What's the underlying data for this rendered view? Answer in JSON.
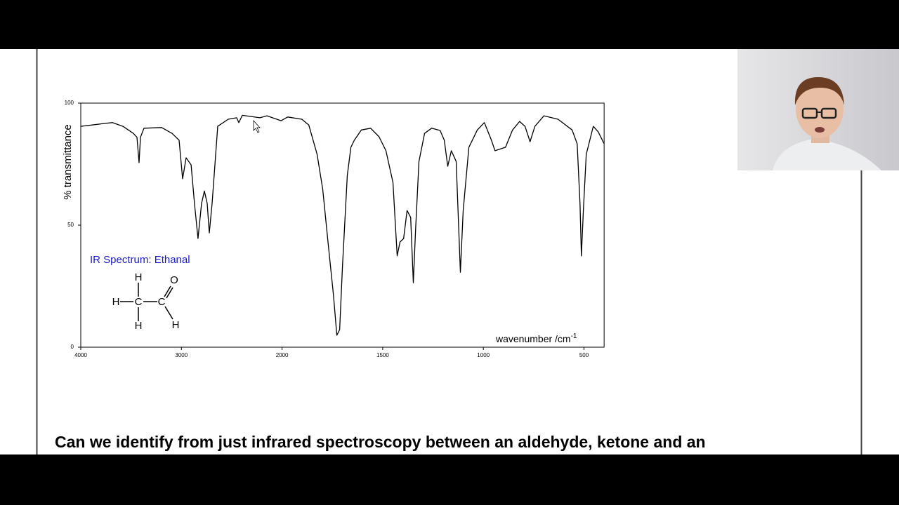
{
  "chart_data": {
    "type": "line",
    "ylabel": "% transmittance",
    "xlabel": "wavenumber /cm",
    "xlabel_sup": "-1",
    "annotation": "IR Spectrum: Ethanal",
    "molecule": [
      "H",
      "H",
      "H",
      "C",
      "C",
      "O",
      "H"
    ],
    "color": "#000000",
    "xlim": [
      4000,
      400
    ],
    "ylim": [
      0,
      100
    ],
    "xticks": [
      4000,
      3000,
      2000,
      1500,
      1000,
      500
    ],
    "yticks": [
      0,
      50,
      100
    ],
    "x": [
      4000,
      3756,
      3686,
      3581,
      3477,
      3442,
      3421,
      3407,
      3372,
      3197,
      3093,
      3023,
      2988,
      2953,
      2904,
      2870,
      2835,
      2800,
      2772,
      2744,
      2723,
      2695,
      2639,
      2535,
      2451,
      2430,
      2395,
      2220,
      2150,
      2010,
      1972,
      1902,
      1867,
      1826,
      1798,
      1770,
      1745,
      1728,
      1714,
      1700,
      1676,
      1658,
      1641,
      1606,
      1560,
      1518,
      1484,
      1449,
      1428,
      1414,
      1396,
      1379,
      1361,
      1348,
      1337,
      1320,
      1292,
      1257,
      1215,
      1194,
      1177,
      1159,
      1135,
      1114,
      1100,
      1072,
      1030,
      995,
      960,
      942,
      890,
      855,
      820,
      793,
      768,
      744,
      699,
      629,
      559,
      534,
      520,
      513,
      503,
      489,
      454,
      429,
      400
    ],
    "values": [
      90.5,
      91.7,
      92,
      90.5,
      87.6,
      86,
      75.6,
      86,
      89.7,
      90,
      87.6,
      84.8,
      69,
      77.6,
      74.7,
      58.9,
      44.5,
      58.9,
      64,
      58.9,
      46.8,
      58.9,
      90.5,
      93.4,
      94,
      92,
      95,
      94,
      94.8,
      92.8,
      94.3,
      93.4,
      91,
      79,
      64.7,
      41.7,
      21.6,
      4.9,
      7.2,
      33,
      70.4,
      81.9,
      84.8,
      89,
      89.7,
      86.2,
      80.5,
      67.5,
      37.4,
      43.1,
      44.5,
      56,
      53.2,
      26.4,
      47.4,
      76.1,
      87.6,
      89.7,
      88.8,
      84.8,
      74.1,
      80.5,
      76.1,
      30.7,
      56,
      81.9,
      89,
      92,
      84.8,
      80.5,
      81.9,
      89,
      92.5,
      90.5,
      84.2,
      90.5,
      94.8,
      93.4,
      89,
      83.3,
      58.9,
      37.4,
      56,
      79,
      90.5,
      88.2,
      83.3
    ]
  },
  "caption": "Can we identify from just infrared spectroscopy between an aldehyde, ketone and an"
}
